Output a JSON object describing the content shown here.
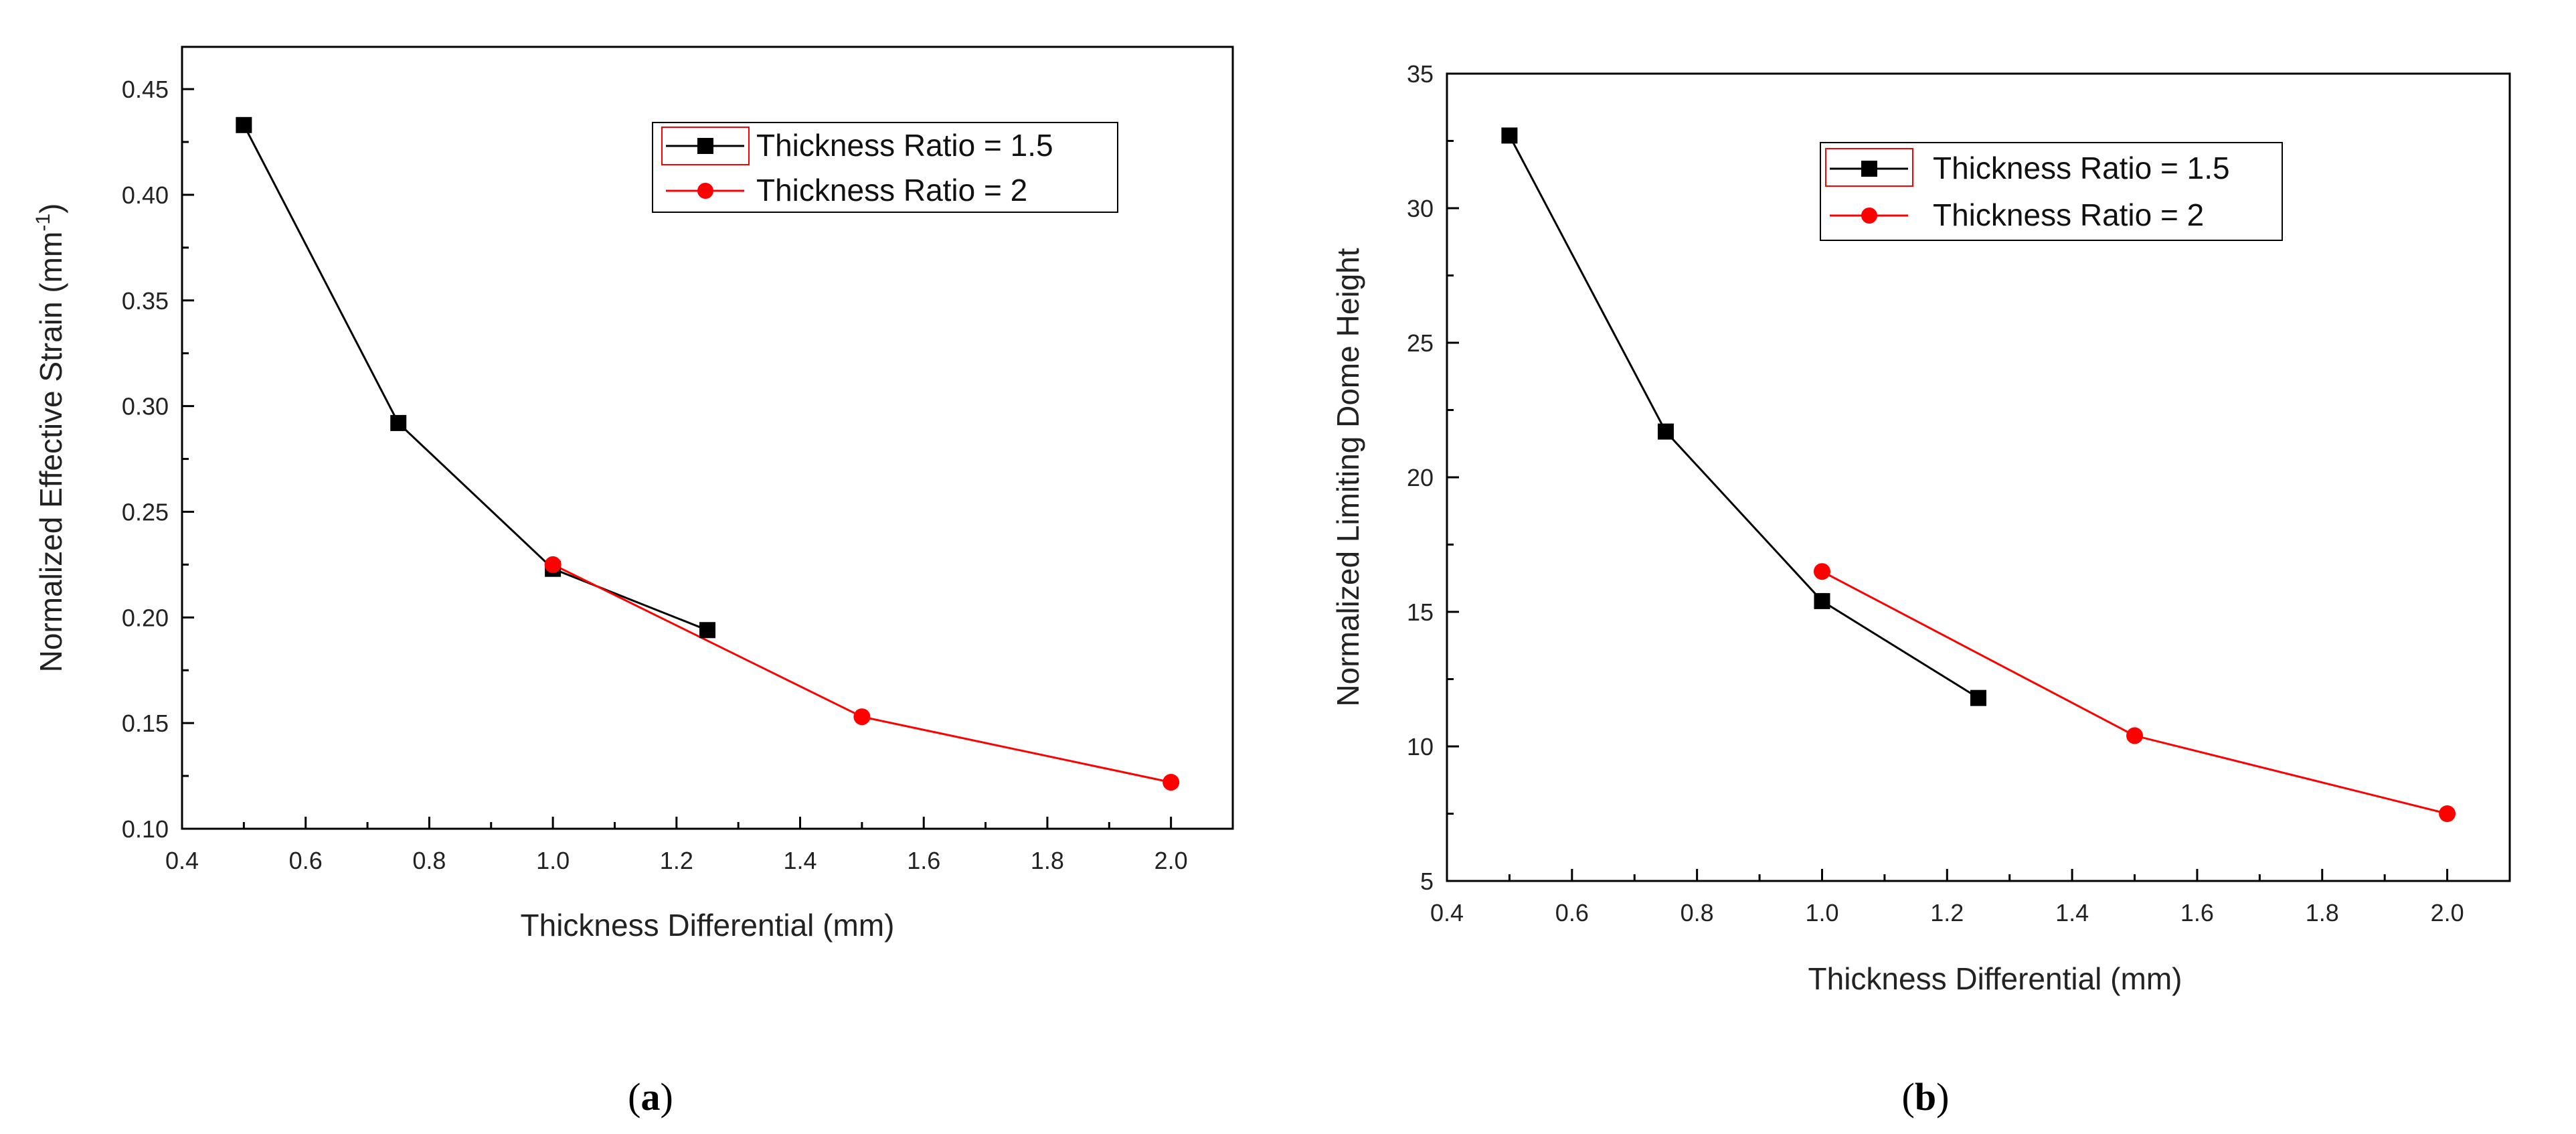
{
  "chart_data": [
    {
      "type": "line",
      "panel": "a",
      "caption": "(a)",
      "caption_letter": "a",
      "xlabel": "Thickness Differential (mm)",
      "ylabel": "Normalized Effective Strain (mm",
      "ylabel_sup": "-1",
      "ylabel_close": ")",
      "xlim": [
        0.4,
        2.1
      ],
      "ylim": [
        0.1,
        0.47
      ],
      "xticks": [
        0.4,
        0.6,
        0.8,
        1.0,
        1.2,
        1.4,
        1.6,
        1.8,
        2.0
      ],
      "xtick_labels": [
        "0.4",
        "0.6",
        "0.8",
        "1.0",
        "1.2",
        "1.4",
        "1.6",
        "1.8",
        "2.0"
      ],
      "yticks": [
        0.1,
        0.15,
        0.2,
        0.25,
        0.3,
        0.35,
        0.4,
        0.45
      ],
      "ytick_labels": [
        "0.10",
        "0.15",
        "0.20",
        "0.25",
        "0.30",
        "0.35",
        "0.40",
        "0.45"
      ],
      "legend_position": "top-right",
      "series": [
        {
          "name": "Thickness Ratio = 1.5",
          "color": "#000000",
          "marker": "square",
          "x": [
            0.5,
            0.75,
            1.0,
            1.25
          ],
          "y": [
            0.433,
            0.292,
            0.223,
            0.194
          ]
        },
        {
          "name": "Thickness Ratio = 2",
          "color": "#ff0000",
          "marker": "circle",
          "x": [
            1.0,
            1.5,
            2.0
          ],
          "y": [
            0.225,
            0.153,
            0.122
          ]
        }
      ]
    },
    {
      "type": "line",
      "panel": "b",
      "caption": "(b)",
      "caption_letter": "b",
      "xlabel": "Thickness Differential (mm)",
      "ylabel": "Normalized Limiting Dome Height",
      "xlim": [
        0.4,
        2.1
      ],
      "ylim": [
        5,
        35
      ],
      "xticks": [
        0.4,
        0.6,
        0.8,
        1.0,
        1.2,
        1.4,
        1.6,
        1.8,
        2.0
      ],
      "xtick_labels": [
        "0.4",
        "0.6",
        "0.8",
        "1.0",
        "1.2",
        "1.4",
        "1.6",
        "1.8",
        "2.0"
      ],
      "yticks": [
        5,
        10,
        15,
        20,
        25,
        30,
        35
      ],
      "ytick_labels": [
        "5",
        "10",
        "15",
        "20",
        "25",
        "30",
        "35"
      ],
      "legend_position": "top-right",
      "series": [
        {
          "name": "Thickness Ratio = 1.5",
          "color": "#000000",
          "marker": "square",
          "x": [
            0.5,
            0.75,
            1.0,
            1.25
          ],
          "y": [
            32.7,
            21.7,
            15.4,
            11.8
          ]
        },
        {
          "name": "Thickness Ratio = 2",
          "color": "#ff0000",
          "marker": "circle",
          "x": [
            1.0,
            1.5,
            2.0
          ],
          "y": [
            16.5,
            10.4,
            7.5
          ]
        }
      ]
    }
  ]
}
